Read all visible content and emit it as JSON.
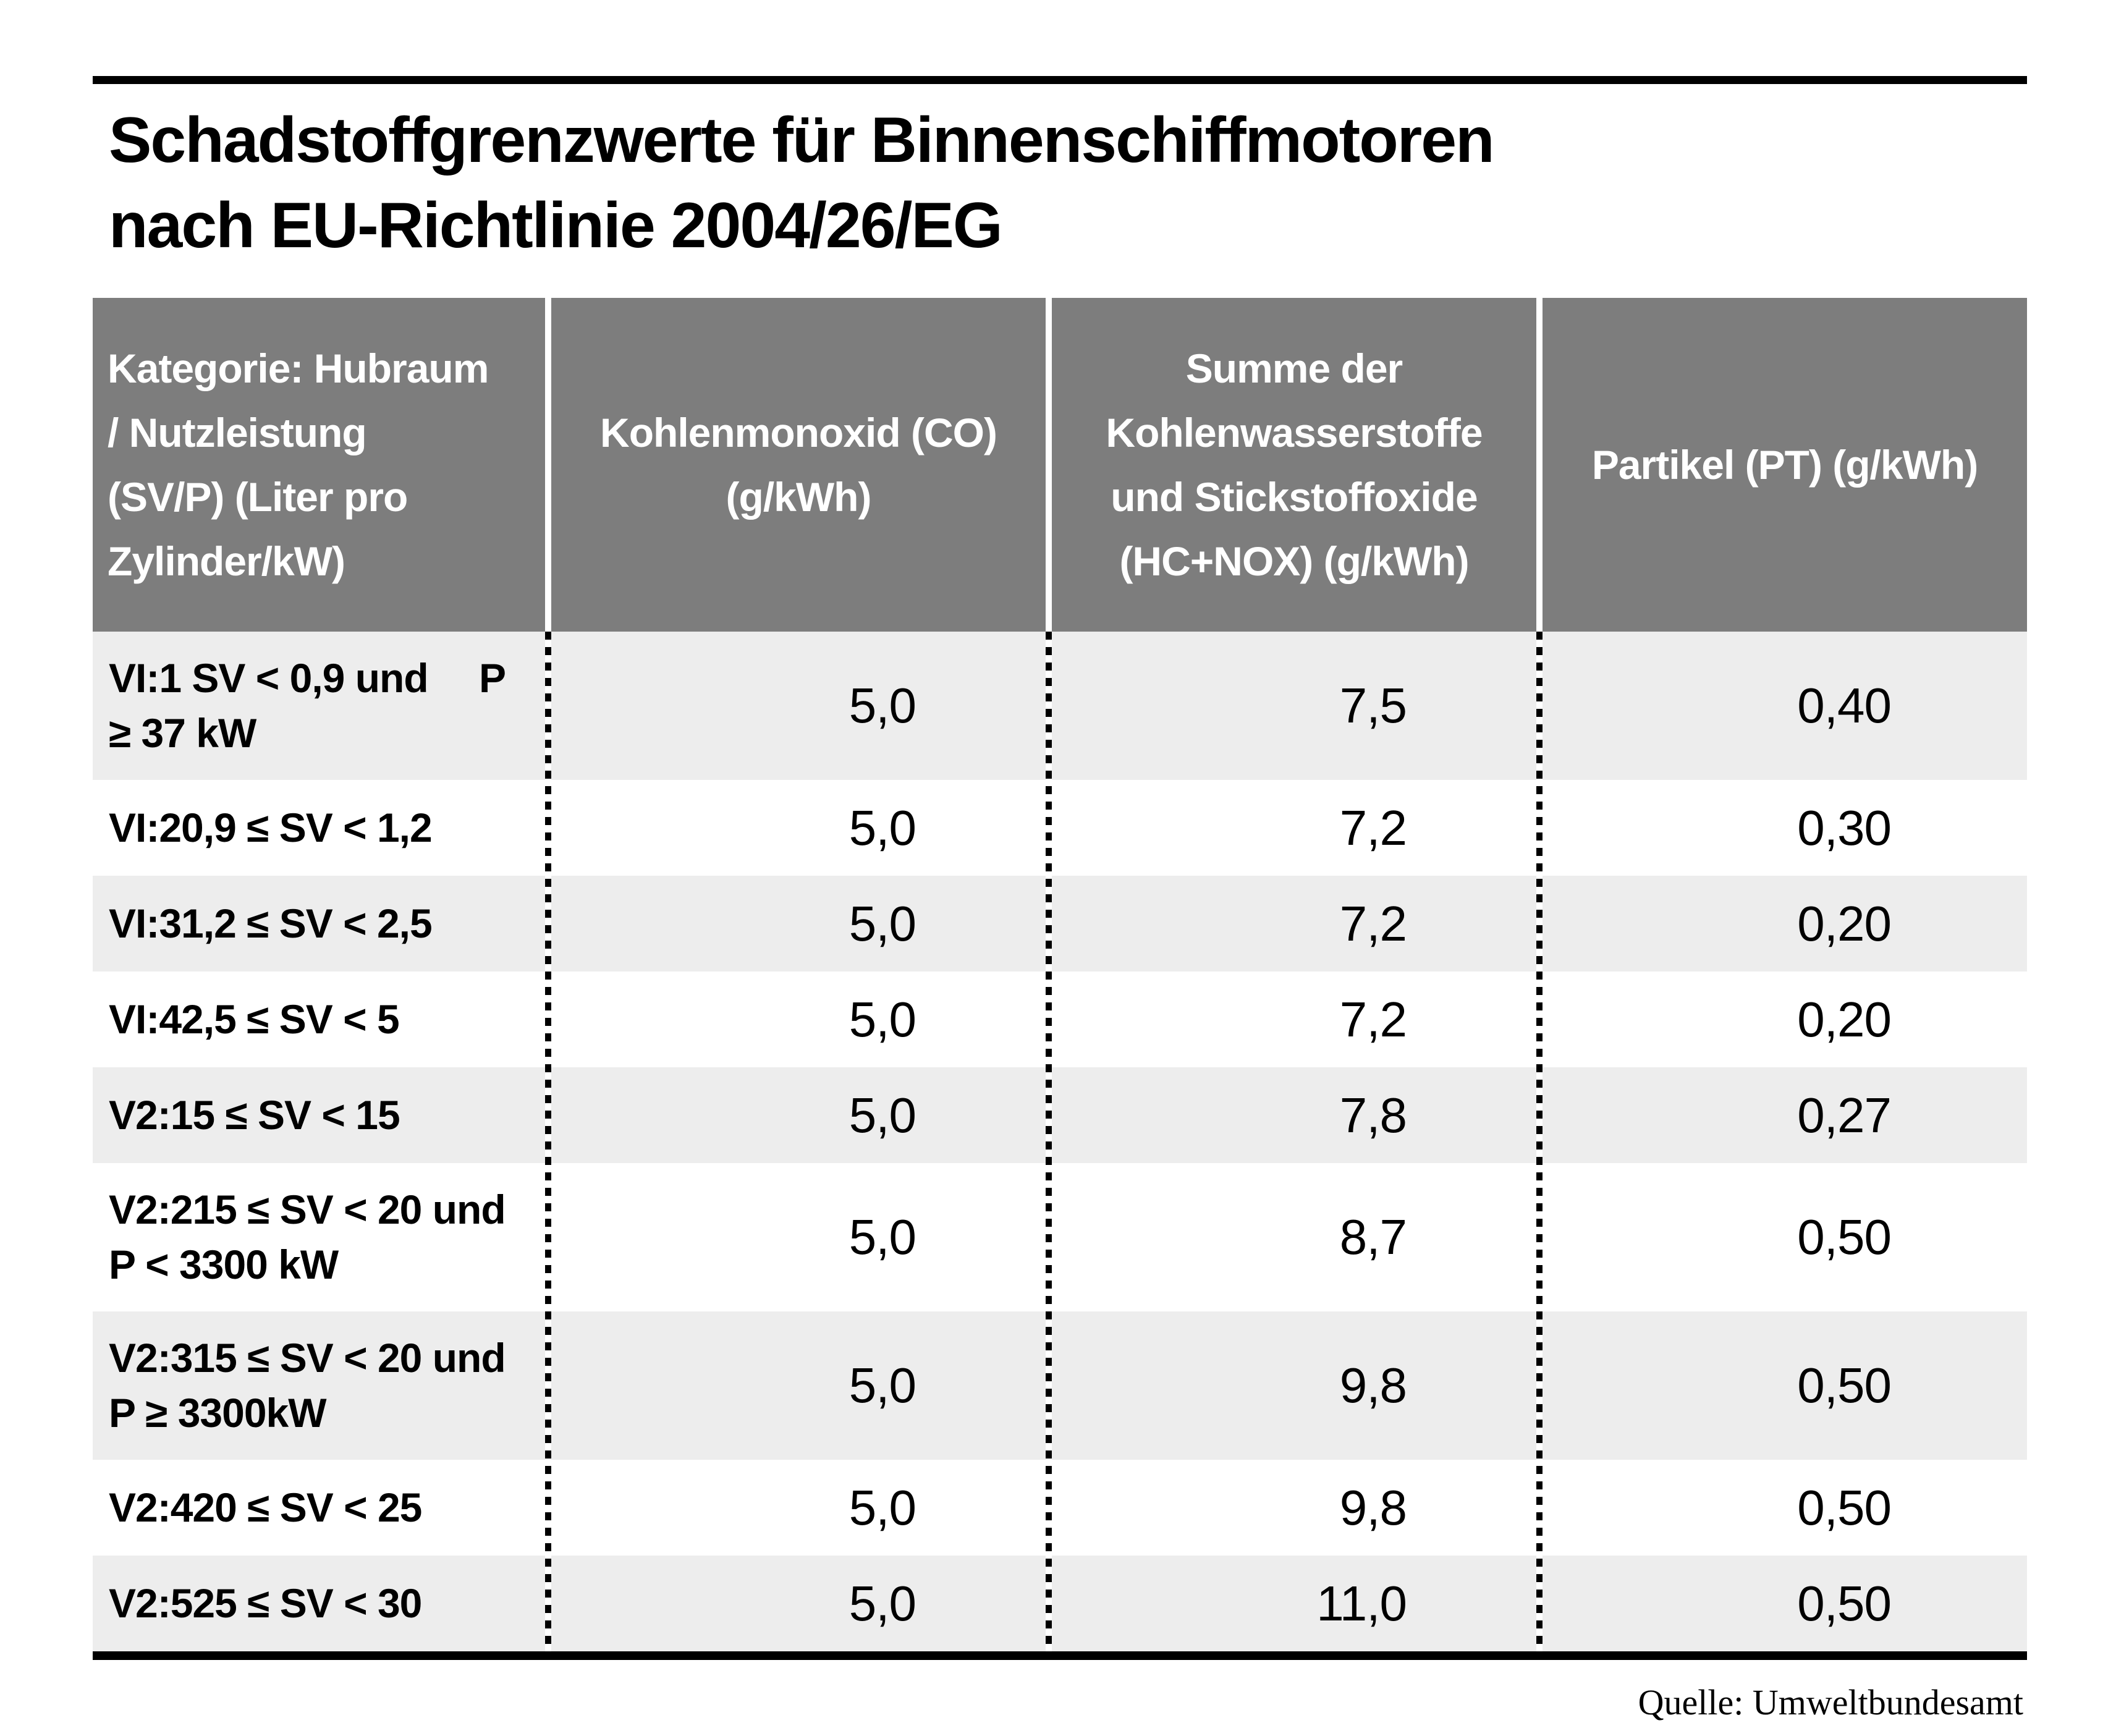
{
  "title": {
    "line1": "Schadstoffgrenzwerte für Binnenschiffmotoren",
    "line2": "nach EU-Richtlinie 2004/26/EG"
  },
  "table": {
    "headers": {
      "category": "Kategorie: Hubraum\n/ Nutzleistung\n(SV/P) (Liter pro\nZylinder/kW)",
      "co": "Kohlenmonoxid (CO)\n(g/kWh)",
      "hc_nox": "Summe der\nKohlenwasserstoffe\nund Stickstoffoxide\n(HC+NOX) (g/kWh)",
      "pt": "Partikel (PT) (g/kWh)"
    },
    "rows": [
      {
        "category": "VI:1 SV < 0,9 und  P\n≥ 37 kW",
        "co": "5,0",
        "hc_nox": "7,5",
        "pt": "0,40"
      },
      {
        "category": "VI:20,9 ≤ SV < 1,2",
        "co": "5,0",
        "hc_nox": "7,2",
        "pt": "0,30"
      },
      {
        "category": "VI:31,2 ≤ SV < 2,5",
        "co": "5,0",
        "hc_nox": "7,2",
        "pt": "0,20"
      },
      {
        "category": "VI:42,5 ≤ SV < 5",
        "co": "5,0",
        "hc_nox": "7,2",
        "pt": "0,20"
      },
      {
        "category": "V2:15 ≤ SV < 15",
        "co": "5,0",
        "hc_nox": "7,8",
        "pt": "0,27"
      },
      {
        "category": "V2:215 ≤ SV < 20 und\nP < 3300 kW",
        "co": "5,0",
        "hc_nox": "8,7",
        "pt": "0,50"
      },
      {
        "category": "V2:315 ≤ SV < 20 und\nP ≥ 3300kW",
        "co": "5,0",
        "hc_nox": "9,8",
        "pt": "0,50"
      },
      {
        "category": "V2:420 ≤ SV < 25",
        "co": "5,0",
        "hc_nox": "9,8",
        "pt": "0,50"
      },
      {
        "category": "V2:525 ≤ SV < 30",
        "co": "5,0",
        "hc_nox": "11,0",
        "pt": "0,50"
      }
    ]
  },
  "source": {
    "label": "Quelle: Umweltbundesamt"
  },
  "colors": {
    "header_bg": "#7d7d7d",
    "header_text": "#ffffff",
    "row_alt_bg": "#ededed",
    "row_bg": "#ffffff",
    "rule": "#000000",
    "text": "#000000"
  },
  "chart_data": {
    "type": "table",
    "title": "Schadstoffgrenzwerte für Binnenschiffmotoren nach EU-Richtlinie 2004/26/EG",
    "columns": [
      "Kategorie: Hubraum / Nutzleistung (SV/P) (Liter pro Zylinder/kW)",
      "Kohlenmonoxid (CO) (g/kWh)",
      "Summe der Kohlenwasserstoffe und Stickstoffoxide (HC+NOX) (g/kWh)",
      "Partikel (PT) (g/kWh)"
    ],
    "rows": [
      [
        "VI:1 SV < 0,9 und P ≥ 37 kW",
        5.0,
        7.5,
        0.4
      ],
      [
        "VI:20,9 ≤ SV < 1,2",
        5.0,
        7.2,
        0.3
      ],
      [
        "VI:31,2 ≤ SV < 2,5",
        5.0,
        7.2,
        0.2
      ],
      [
        "VI:42,5 ≤ SV < 5",
        5.0,
        7.2,
        0.2
      ],
      [
        "V2:15 ≤ SV < 15",
        5.0,
        7.8,
        0.27
      ],
      [
        "V2:215 ≤ SV < 20 und P < 3300 kW",
        5.0,
        8.7,
        0.5
      ],
      [
        "V2:315 ≤ SV < 20 und P ≥ 3300kW",
        5.0,
        9.8,
        0.5
      ],
      [
        "V2:420 ≤ SV < 25",
        5.0,
        9.8,
        0.5
      ],
      [
        "V2:525 ≤ SV < 30",
        5.0,
        11.0,
        0.5
      ]
    ],
    "source": "Quelle: Umweltbundesamt"
  }
}
